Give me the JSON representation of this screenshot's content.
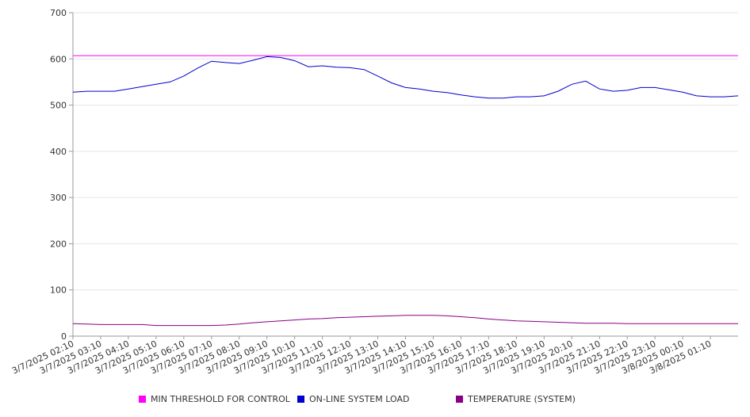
{
  "chart_data": {
    "type": "line",
    "title": "",
    "xlabel": "",
    "ylabel": "",
    "ylim": [
      0,
      700
    ],
    "yticks": [
      0,
      100,
      200,
      300,
      400,
      500,
      600,
      700
    ],
    "grid": true,
    "legend_position": "bottom",
    "x_tick_labels": [
      "3/7/2025 02:10",
      "3/7/2025 03:10",
      "3/7/2025 04:10",
      "3/7/2025 05:10",
      "3/7/2025 06:10",
      "3/7/2025 07:10",
      "3/7/2025 08:10",
      "3/7/2025 09:10",
      "3/7/2025 10:10",
      "3/7/2025 11:10",
      "3/7/2025 12:10",
      "3/7/2025 13:10",
      "3/7/2025 14:10",
      "3/7/2025 15:10",
      "3/7/2025 16:10",
      "3/7/2025 17:10",
      "3/7/2025 18:10",
      "3/7/2025 19:10",
      "3/7/2025 20:10",
      "3/7/2025 21:10",
      "3/7/2025 22:10",
      "3/7/2025 23:10",
      "3/8/2025 00:10",
      "3/8/2025 01:10"
    ],
    "x_hours": [
      0,
      0.5,
      1,
      1.5,
      2,
      2.5,
      3,
      3.5,
      4,
      4.5,
      5,
      5.5,
      6,
      6.5,
      7,
      7.5,
      8,
      8.5,
      9,
      9.5,
      10,
      10.5,
      11,
      11.5,
      12,
      12.5,
      13,
      13.5,
      14,
      14.5,
      15,
      15.5,
      16,
      16.5,
      17,
      17.5,
      18,
      18.5,
      19,
      19.5,
      20,
      20.5,
      21,
      21.5,
      22,
      22.5,
      23,
      23.5,
      24
    ],
    "series": [
      {
        "name": "MIN THRESHOLD FOR CONTROL",
        "color": "#ff00ff",
        "values": [
          607,
          607,
          607,
          607,
          607,
          607,
          607,
          607,
          607,
          607,
          607,
          607,
          607,
          607,
          607,
          607,
          607,
          607,
          607,
          607,
          607,
          607,
          607,
          607,
          607,
          607,
          607,
          607,
          607,
          607,
          607,
          607,
          607,
          607,
          607,
          607,
          607,
          607,
          607,
          607,
          607,
          607,
          607,
          607,
          607,
          607,
          607,
          607,
          607
        ]
      },
      {
        "name": "ON-LINE SYSTEM LOAD",
        "color": "#0000cc",
        "values": [
          528,
          530,
          530,
          530,
          535,
          540,
          545,
          550,
          563,
          580,
          595,
          592,
          590,
          597,
          605,
          603,
          596,
          583,
          585,
          582,
          581,
          577,
          563,
          548,
          538,
          535,
          530,
          527,
          522,
          518,
          515,
          515,
          518,
          518,
          520,
          530,
          545,
          552,
          535,
          530,
          532,
          538,
          538,
          533,
          528,
          520,
          518,
          518,
          520
        ]
      },
      {
        "name": "TEMPERATURE (SYSTEM)",
        "color": "#880088",
        "values": [
          27,
          26,
          25,
          25,
          25,
          25,
          23,
          23,
          23,
          23,
          23,
          24,
          26,
          29,
          31,
          33,
          35,
          37,
          38,
          40,
          41,
          42,
          43,
          44,
          45,
          45,
          45,
          44,
          42,
          40,
          37,
          35,
          33,
          32,
          31,
          30,
          29,
          28,
          28,
          28,
          27,
          27,
          27,
          27,
          27,
          27,
          27,
          27,
          27
        ]
      }
    ]
  },
  "legend": {
    "item1": "MIN THRESHOLD FOR CONTROL",
    "item2": "ON-LINE SYSTEM LOAD",
    "item3": "TEMPERATURE (SYSTEM)",
    "color1": "#ff00ff",
    "color2": "#0000cc",
    "color3": "#880088"
  }
}
